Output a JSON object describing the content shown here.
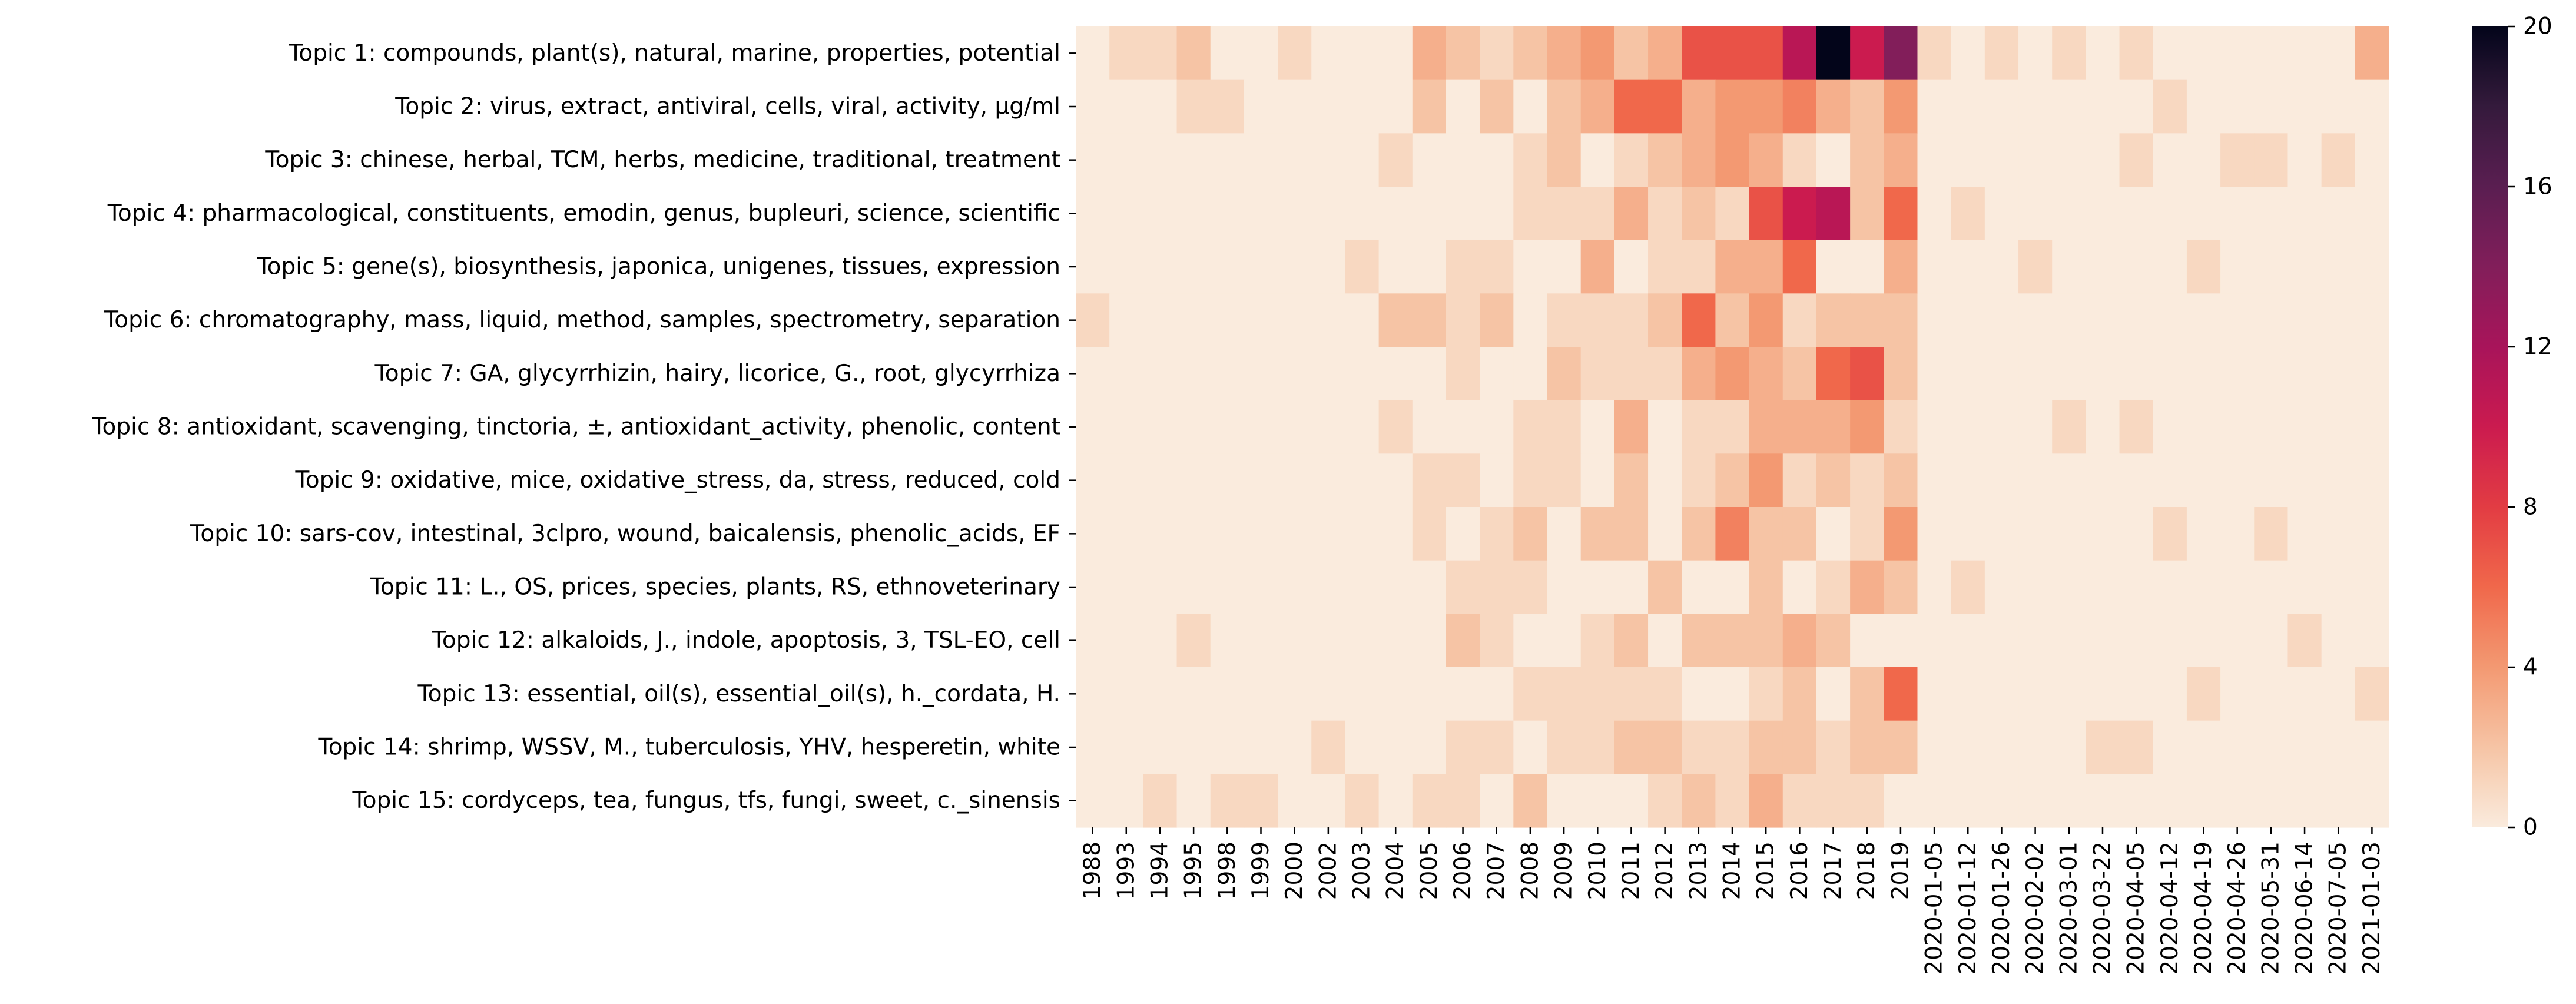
{
  "chart_data": {
    "type": "heatmap",
    "title": "",
    "xlabel": "",
    "ylabel": "",
    "rows": [
      "Topic 1: compounds, plant(s), natural, marine, properties, potential",
      "Topic 2: virus, extract, antiviral, cells, viral, activity, µg/ml",
      "Topic 3: chinese, herbal, TCM, herbs, medicine, traditional, treatment",
      "Topic 4: pharmacological, constituents, emodin, genus, bupleuri, science, scientific",
      "Topic 5: gene(s), biosynthesis, japonica, unigenes, tissues, expression",
      "Topic 6: chromatography, mass, liquid, method, samples, spectrometry, separation",
      "Topic 7: GA, glycyrrhizin, hairy, licorice, G., root, glycyrrhiza",
      "Topic 8: antioxidant, scavenging, tinctoria, ±, antioxidant_activity, phenolic, content",
      "Topic 9: oxidative, mice, oxidative_stress, da, stress, reduced, cold",
      "Topic 10: sars-cov, intestinal, 3clpro, wound, baicalensis, phenolic_acids, EF",
      "Topic 11: L., OS, prices, species, plants, RS, ethnoveterinary",
      "Topic 12: alkaloids, J., indole, apoptosis, 3, TSL-EO, cell",
      "Topic 13: essential, oil(s), essential_oil(s), h._cordata, H.",
      "Topic 14: shrimp, WSSV, M., tuberculosis, YHV, hesperetin, white",
      "Topic 15: cordyceps, tea, fungus, tfs, fungi, sweet, c._sinensis"
    ],
    "columns": [
      "1988",
      "1993",
      "1994",
      "1995",
      "1998",
      "1999",
      "2000",
      "2002",
      "2003",
      "2004",
      "2005",
      "2006",
      "2007",
      "2008",
      "2009",
      "2010",
      "2011",
      "2012",
      "2013",
      "2014",
      "2015",
      "2016",
      "2017",
      "2018",
      "2019",
      "2020-01-05",
      "2020-01-12",
      "2020-01-26",
      "2020-02-02",
      "2020-03-01",
      "2020-03-22",
      "2020-04-05",
      "2020-04-12",
      "2020-04-19",
      "2020-04-26",
      "2020-05-31",
      "2020-06-14",
      "2020-07-05",
      "2021-01-03"
    ],
    "values": [
      [
        0,
        1,
        1,
        2,
        0,
        0,
        1,
        0,
        0,
        0,
        3,
        2,
        1,
        2,
        3,
        4,
        2,
        3,
        7,
        7,
        7,
        11,
        20,
        10,
        14,
        1,
        0,
        1,
        0,
        1,
        0,
        1,
        0,
        0,
        0,
        0,
        0,
        0,
        3
      ],
      [
        0,
        0,
        0,
        1,
        1,
        0,
        0,
        0,
        0,
        0,
        2,
        0,
        2,
        0,
        2,
        3,
        6,
        6,
        3,
        4,
        4,
        5,
        3,
        2,
        4,
        0,
        0,
        0,
        0,
        0,
        0,
        0,
        1,
        0,
        0,
        0,
        0,
        0,
        0
      ],
      [
        0,
        0,
        0,
        0,
        0,
        0,
        0,
        0,
        0,
        1,
        0,
        0,
        0,
        1,
        2,
        0,
        1,
        2,
        3,
        4,
        3,
        1,
        0,
        2,
        3,
        0,
        0,
        0,
        0,
        0,
        0,
        1,
        0,
        0,
        1,
        1,
        0,
        1,
        0
      ],
      [
        0,
        0,
        0,
        0,
        0,
        0,
        0,
        0,
        0,
        0,
        0,
        0,
        0,
        1,
        1,
        1,
        3,
        1,
        2,
        1,
        7,
        10,
        11,
        2,
        6,
        0,
        1,
        0,
        0,
        0,
        0,
        0,
        0,
        0,
        0,
        0,
        0,
        0,
        0
      ],
      [
        0,
        0,
        0,
        0,
        0,
        0,
        0,
        0,
        1,
        0,
        0,
        1,
        1,
        0,
        0,
        3,
        0,
        1,
        1,
        3,
        3,
        6,
        0,
        0,
        3,
        0,
        0,
        0,
        1,
        0,
        0,
        0,
        0,
        1,
        0,
        0,
        0,
        0,
        0
      ],
      [
        1,
        0,
        0,
        0,
        0,
        0,
        0,
        0,
        0,
        2,
        2,
        1,
        2,
        0,
        1,
        1,
        1,
        2,
        6,
        2,
        4,
        1,
        2,
        2,
        2,
        0,
        0,
        0,
        0,
        0,
        0,
        0,
        0,
        0,
        0,
        0,
        0,
        0,
        0
      ],
      [
        0,
        0,
        0,
        0,
        0,
        0,
        0,
        0,
        0,
        0,
        0,
        1,
        0,
        0,
        2,
        1,
        1,
        1,
        3,
        4,
        3,
        2,
        6,
        7,
        2,
        0,
        0,
        0,
        0,
        0,
        0,
        0,
        0,
        0,
        0,
        0,
        0,
        0,
        0
      ],
      [
        0,
        0,
        0,
        0,
        0,
        0,
        0,
        0,
        0,
        1,
        0,
        0,
        0,
        1,
        1,
        0,
        3,
        0,
        1,
        1,
        3,
        3,
        3,
        4,
        1,
        0,
        0,
        0,
        0,
        1,
        0,
        1,
        0,
        0,
        0,
        0,
        0,
        0,
        0
      ],
      [
        0,
        0,
        0,
        0,
        0,
        0,
        0,
        0,
        0,
        0,
        1,
        1,
        0,
        1,
        1,
        0,
        2,
        0,
        1,
        2,
        4,
        1,
        2,
        1,
        2,
        0,
        0,
        0,
        0,
        0,
        0,
        0,
        0,
        0,
        0,
        0,
        0,
        0,
        0
      ],
      [
        0,
        0,
        0,
        0,
        0,
        0,
        0,
        0,
        0,
        0,
        1,
        0,
        1,
        2,
        0,
        2,
        2,
        0,
        2,
        5,
        2,
        2,
        0,
        1,
        4,
        0,
        0,
        0,
        0,
        0,
        0,
        0,
        1,
        0,
        0,
        1,
        0,
        0,
        0
      ],
      [
        0,
        0,
        0,
        0,
        0,
        0,
        0,
        0,
        0,
        0,
        0,
        1,
        1,
        1,
        0,
        0,
        0,
        2,
        0,
        0,
        2,
        0,
        1,
        3,
        2,
        0,
        1,
        0,
        0,
        0,
        0,
        0,
        0,
        0,
        0,
        0,
        0,
        0,
        0
      ],
      [
        0,
        0,
        0,
        1,
        0,
        0,
        0,
        0,
        0,
        0,
        0,
        2,
        1,
        0,
        0,
        1,
        2,
        0,
        2,
        2,
        2,
        3,
        2,
        0,
        0,
        0,
        0,
        0,
        0,
        0,
        0,
        0,
        0,
        0,
        0,
        0,
        1,
        0,
        0
      ],
      [
        0,
        0,
        0,
        0,
        0,
        0,
        0,
        0,
        0,
        0,
        0,
        0,
        0,
        1,
        1,
        1,
        1,
        1,
        0,
        0,
        1,
        2,
        0,
        2,
        6,
        0,
        0,
        0,
        0,
        0,
        0,
        0,
        0,
        1,
        0,
        0,
        0,
        0,
        1
      ],
      [
        0,
        0,
        0,
        0,
        0,
        0,
        0,
        1,
        0,
        0,
        0,
        1,
        1,
        0,
        1,
        1,
        2,
        2,
        1,
        1,
        2,
        2,
        1,
        2,
        2,
        0,
        0,
        0,
        0,
        0,
        1,
        1,
        0,
        0,
        0,
        0,
        0,
        0,
        0
      ],
      [
        0,
        0,
        1,
        0,
        1,
        1,
        0,
        0,
        1,
        0,
        1,
        1,
        0,
        2,
        0,
        0,
        0,
        1,
        2,
        1,
        3,
        1,
        1,
        1,
        0,
        0,
        0,
        0,
        0,
        0,
        0,
        0,
        0,
        0,
        0,
        0,
        0,
        0,
        0
      ]
    ],
    "colorbar": {
      "min": 0,
      "max": 20,
      "ticks": [
        0,
        4,
        8,
        12,
        16,
        20
      ],
      "colormap": "rocket_r"
    },
    "grid": false,
    "legend": "colorbar right"
  }
}
